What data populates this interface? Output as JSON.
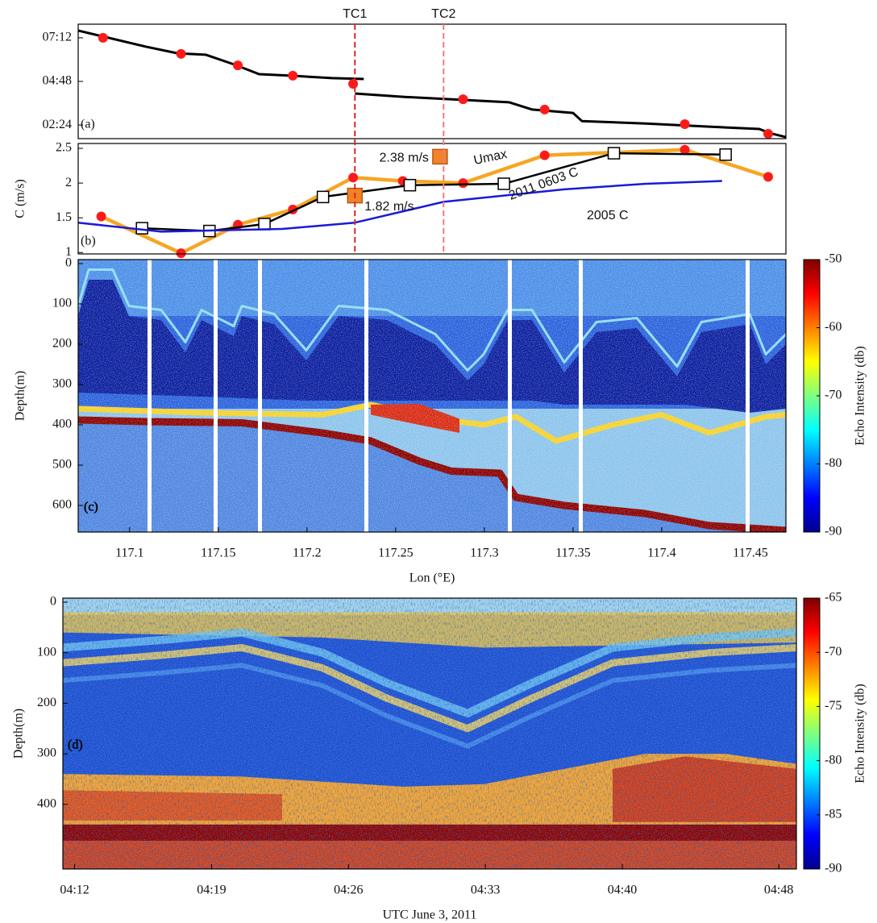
{
  "chart_data": [
    {
      "type": "line",
      "panel_label": "(a)",
      "xlim": [
        117.071,
        117.47
      ],
      "ylim": [
        99,
        477
      ],
      "yticks": [
        {
          "value": 144,
          "label": "02:24"
        },
        {
          "value": 288,
          "label": "04:48"
        },
        {
          "value": 432,
          "label": "07:12"
        }
      ],
      "vlines": [
        {
          "label": "TC1",
          "x": 117.227,
          "color": "#e02424"
        },
        {
          "label": "TC2",
          "x": 117.277,
          "color": "#f27a7a"
        }
      ],
      "series": [
        {
          "color": "#000000",
          "x": [
            117.071,
            117.109,
            117.127,
            117.143,
            117.159,
            117.173,
            117.191,
            117.214,
            117.232,
            null,
            117.227,
            117.255,
            117.314,
            117.327,
            117.35,
            117.355,
            117.391,
            117.436,
            117.455,
            117.461,
            117.47
          ],
          "values": [
            456,
            403,
            381,
            376,
            344,
            312,
            307,
            299,
            296,
            null,
            248,
            237,
            219,
            195,
            184,
            157,
            149,
            136,
            131,
            117,
            104
          ]
        },
        {
          "color": "#ff0000",
          "marker": "circle",
          "marker_color": "#ff1a1a",
          "line": false,
          "x": [
            117.085,
            117.129,
            117.161,
            117.192,
            117.226,
            117.288,
            117.334,
            117.413,
            117.46
          ],
          "values": [
            432,
            379,
            341,
            307,
            280,
            229,
            195,
            147,
            115
          ]
        }
      ]
    },
    {
      "type": "line",
      "panel_label": "(b)",
      "ylabel": "C (m/s)",
      "xlim": [
        117.071,
        117.47
      ],
      "ylim": [
        0.98,
        2.57
      ],
      "yticks": [
        1,
        1.5,
        2,
        2.5
      ],
      "series": [
        {
          "name": "Umax",
          "color": "#f5a623",
          "marker": "circle",
          "marker_color": "#ff1a1a",
          "x": [
            117.084,
            117.129,
            117.161,
            117.192,
            117.226,
            117.254,
            117.288,
            117.334,
            117.413,
            117.46
          ],
          "values": [
            1.52,
            0.99,
            1.4,
            1.62,
            2.08,
            2.03,
            2.0,
            2.4,
            2.48,
            2.09
          ]
        },
        {
          "name": "2011 0603 C",
          "color": "#000000",
          "marker": "square",
          "marker_color": "#ffffff",
          "x": [
            117.107,
            117.145,
            117.176,
            117.209,
            117.258,
            117.311,
            117.373,
            117.436
          ],
          "values": [
            1.35,
            1.31,
            1.41,
            1.8,
            1.97,
            1.99,
            2.43,
            2.41
          ]
        },
        {
          "name": "2005 C",
          "color": "#1a1ad6",
          "x": [
            117.071,
            117.118,
            117.186,
            117.227,
            117.277,
            117.345,
            117.391,
            117.434
          ],
          "values": [
            1.43,
            1.3,
            1.34,
            1.43,
            1.73,
            1.91,
            1.99,
            2.03
          ]
        },
        {
          "color": "#b85a10",
          "marker": "square",
          "marker_color": "#f0822a",
          "line": false,
          "x": [
            117.227,
            117.275
          ],
          "values": [
            1.82,
            2.38
          ],
          "value_labels": [
            "1.82 m/s",
            "2.38 m/s"
          ]
        }
      ]
    },
    {
      "type": "heatmap",
      "panel_label": "(c)",
      "xlabel": "Lon (°E)",
      "ylabel": "Depth(m)",
      "xlim": [
        117.071,
        117.47
      ],
      "ylim": [
        666,
        -10
      ],
      "xticks": [
        117.1,
        117.15,
        117.2,
        117.25,
        117.3,
        117.35,
        117.4,
        117.45
      ],
      "yticks": [
        0,
        100,
        200,
        300,
        400,
        500,
        600
      ],
      "colorbar": {
        "label": "Echo Intensity (db)",
        "clim": [
          -90,
          -50
        ],
        "ticks": [
          -50,
          -60,
          -70,
          -80,
          -90
        ]
      }
    },
    {
      "type": "heatmap",
      "panel_label": "(d)",
      "xlabel": "UTC June 3, 2011",
      "ylabel": "Depth(m)",
      "xlim": [
        251.4,
        288.9
      ],
      "ylim": [
        528,
        -8
      ],
      "xticks": [
        {
          "value": 252,
          "label": "04:12"
        },
        {
          "value": 259,
          "label": "04:19"
        },
        {
          "value": 266,
          "label": "04:26"
        },
        {
          "value": 273,
          "label": "04:33"
        },
        {
          "value": 280,
          "label": "04:40"
        },
        {
          "value": 288,
          "label": "04:48"
        }
      ],
      "yticks": [
        0,
        100,
        200,
        300,
        400
      ],
      "colorbar": {
        "label": "Echo Intensity (db)",
        "clim": [
          -90,
          -65
        ],
        "ticks": [
          -65,
          -70,
          -75,
          -80,
          -85,
          -90
        ]
      }
    }
  ]
}
